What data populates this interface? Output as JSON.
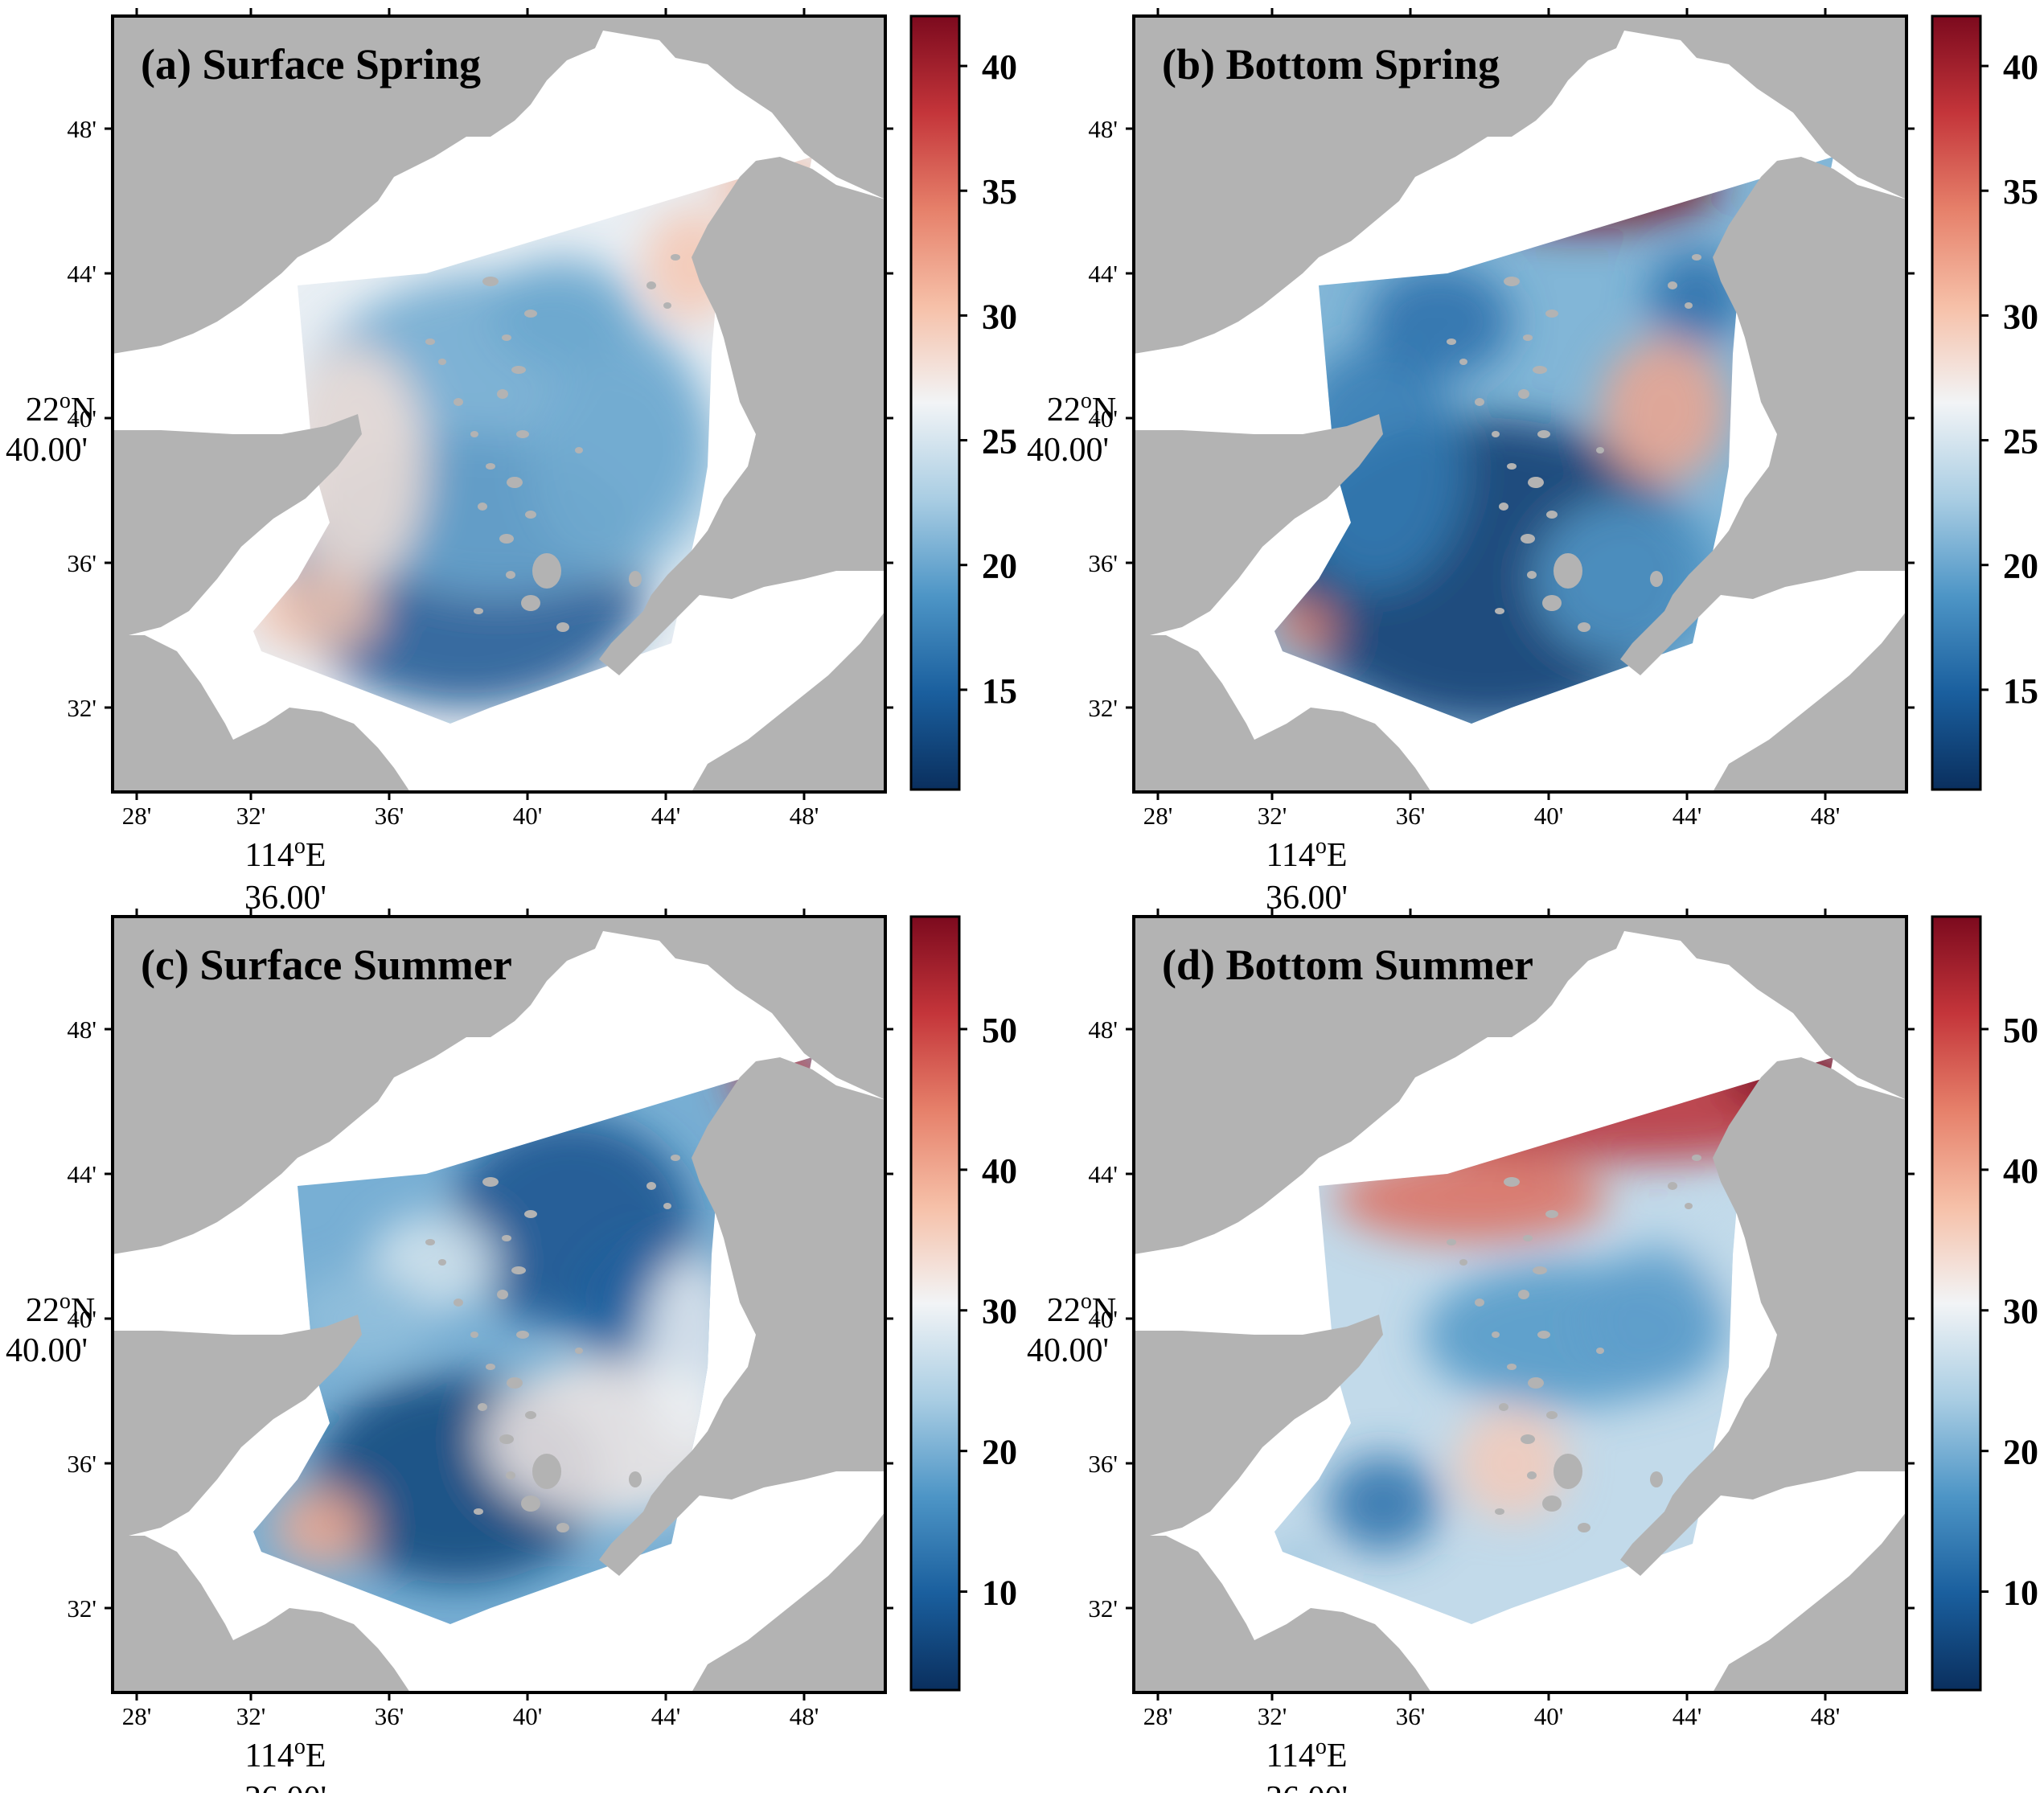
{
  "figure": {
    "x_ticks": [
      "28'",
      "32'",
      "36'",
      "40'",
      "44'",
      "48'"
    ],
    "y_ticks": [
      "48'",
      "44'",
      "40'",
      "36'",
      "32'"
    ],
    "x_label_line1": "114",
    "x_label_sup": "o",
    "x_label_unit": "E",
    "x_label_line2": "36.00'",
    "y_label_line1": "22",
    "y_label_sup": "o",
    "y_label_unit": "N",
    "y_label_line2": "40.00'",
    "land_color": "#b3b3b3",
    "water_color": "#ffffff"
  },
  "colormap": {
    "name": "RdBu_r",
    "stops": [
      "#0a2f5e",
      "#1a5f9e",
      "#4d95c6",
      "#a9cde3",
      "#f2f4f6",
      "#f6c0a8",
      "#e6806a",
      "#c4353a",
      "#7c0a1e"
    ]
  },
  "panels": [
    {
      "title": "(a) Surface Spring",
      "colorbar_ticks": [
        "40",
        "35",
        "30",
        "25",
        "20",
        "15"
      ],
      "colorbar_range": [
        11,
        42
      ]
    },
    {
      "title": "(b) Bottom Spring",
      "colorbar_ticks": [
        "40",
        "35",
        "30",
        "25",
        "20",
        "15"
      ],
      "colorbar_range": [
        11,
        42
      ]
    },
    {
      "title": "(c) Surface Summer",
      "colorbar_ticks": [
        "50",
        "40",
        "30",
        "20",
        "10"
      ],
      "colorbar_range": [
        3,
        58
      ]
    },
    {
      "title": "(d) Bottom Summer",
      "colorbar_ticks": [
        "50",
        "40",
        "30",
        "20",
        "10"
      ],
      "colorbar_range": [
        3,
        58
      ]
    }
  ]
}
